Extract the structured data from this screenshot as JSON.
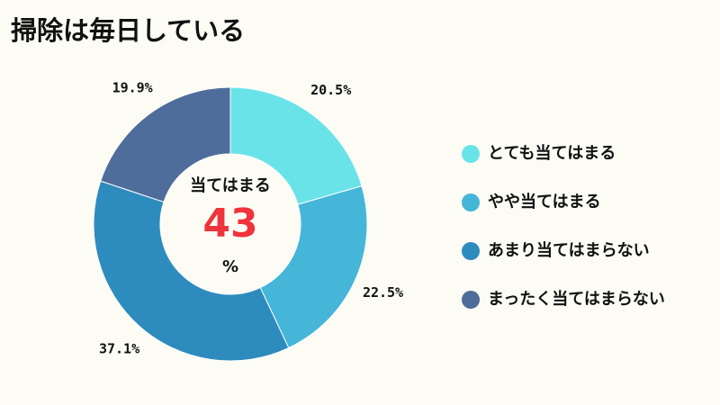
{
  "chart_data": {
    "type": "donut",
    "title": "掃除は毎日している",
    "categories": [
      "とても当てはまる",
      "やや当てはまる",
      "あまり当てはまらない",
      "まったく当てはまらない"
    ],
    "values": [
      20.5,
      22.5,
      37.1,
      19.9
    ],
    "value_labels": [
      "20.5%",
      "22.5%",
      "37.1%",
      "19.9%"
    ],
    "colors": [
      "#6ae3e8",
      "#45b6d8",
      "#2e8bbd",
      "#4e6d9a"
    ],
    "center_label": "当てはまる",
    "center_value": 43,
    "center_unit": "%"
  }
}
